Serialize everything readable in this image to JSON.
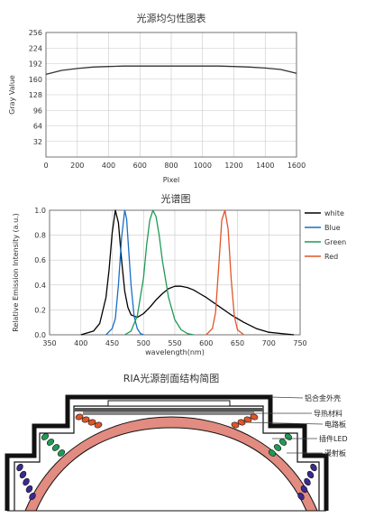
{
  "chart_data": [
    {
      "type": "line",
      "title": "光源均匀性图表",
      "xlabel": "Pixel",
      "ylabel": "Gray Value",
      "xlim": [
        0,
        1600
      ],
      "ylim": [
        0,
        256
      ],
      "xticks": [
        0,
        200,
        400,
        600,
        800,
        1000,
        1200,
        1400,
        1600
      ],
      "yticks": [
        32,
        64,
        96,
        128,
        160,
        192,
        224,
        256
      ],
      "grid": true,
      "series": [
        {
          "x": [
            0,
            100,
            200,
            300,
            400,
            500,
            600,
            700,
            800,
            900,
            1000,
            1100,
            1200,
            1300,
            1400,
            1500,
            1600
          ],
          "values": [
            170,
            178,
            182,
            185,
            186,
            187,
            187,
            187,
            187,
            187,
            187,
            187,
            186,
            185,
            183,
            180,
            172
          ]
        }
      ]
    },
    {
      "type": "line",
      "title": "光谱图",
      "xlabel": "wavelength(nm)",
      "ylabel": "Relative Emission Intensity (a.u.)",
      "xlim": [
        350,
        750
      ],
      "ylim": [
        0,
        1.0
      ],
      "xticks": [
        350,
        400,
        450,
        500,
        550,
        600,
        650,
        700,
        750
      ],
      "yticks": [
        0.0,
        0.2,
        0.4,
        0.6,
        0.8,
        1.0
      ],
      "grid": true,
      "legend_position": "right",
      "series": [
        {
          "name": "white",
          "color": "#000000",
          "x": [
            400,
            420,
            430,
            440,
            445,
            450,
            455,
            460,
            465,
            470,
            475,
            480,
            490,
            500,
            510,
            520,
            530,
            540,
            550,
            560,
            570,
            580,
            590,
            600,
            620,
            640,
            660,
            680,
            700,
            720,
            740
          ],
          "values": [
            0.0,
            0.03,
            0.09,
            0.3,
            0.52,
            0.82,
            1.0,
            0.9,
            0.6,
            0.35,
            0.22,
            0.16,
            0.14,
            0.17,
            0.22,
            0.28,
            0.33,
            0.37,
            0.39,
            0.39,
            0.38,
            0.36,
            0.33,
            0.3,
            0.23,
            0.16,
            0.1,
            0.05,
            0.02,
            0.01,
            0.0
          ]
        },
        {
          "name": "Blue",
          "color": "#1a6fc4",
          "x": [
            440,
            450,
            455,
            460,
            465,
            470,
            473,
            476,
            480,
            485,
            490,
            495,
            500
          ],
          "values": [
            0.0,
            0.05,
            0.13,
            0.4,
            0.78,
            1.0,
            0.93,
            0.7,
            0.4,
            0.15,
            0.05,
            0.01,
            0.0
          ]
        },
        {
          "name": "Green",
          "color": "#1f9a55",
          "x": [
            470,
            480,
            490,
            500,
            505,
            510,
            515,
            520,
            525,
            530,
            540,
            550,
            560,
            570,
            580
          ],
          "values": [
            0.0,
            0.03,
            0.15,
            0.46,
            0.72,
            0.92,
            1.0,
            0.95,
            0.8,
            0.6,
            0.3,
            0.12,
            0.04,
            0.01,
            0.0
          ]
        },
        {
          "name": "Red",
          "color": "#e0552a",
          "x": [
            600,
            610,
            615,
            620,
            625,
            630,
            635,
            640,
            645,
            650,
            660
          ],
          "values": [
            0.0,
            0.05,
            0.18,
            0.55,
            0.92,
            1.0,
            0.85,
            0.45,
            0.15,
            0.04,
            0.0
          ]
        }
      ]
    }
  ],
  "diagram": {
    "title": "RIA光源剖面结构简图",
    "callouts": [
      "铝合金外壳",
      "导热材料",
      "电路板",
      "插件LED",
      "漫射板"
    ],
    "colors": {
      "outer_led": "#3b2a8f",
      "middle_led": "#1f9a55",
      "top_led": "#e0552a",
      "diffuser": "#e28b80"
    }
  }
}
